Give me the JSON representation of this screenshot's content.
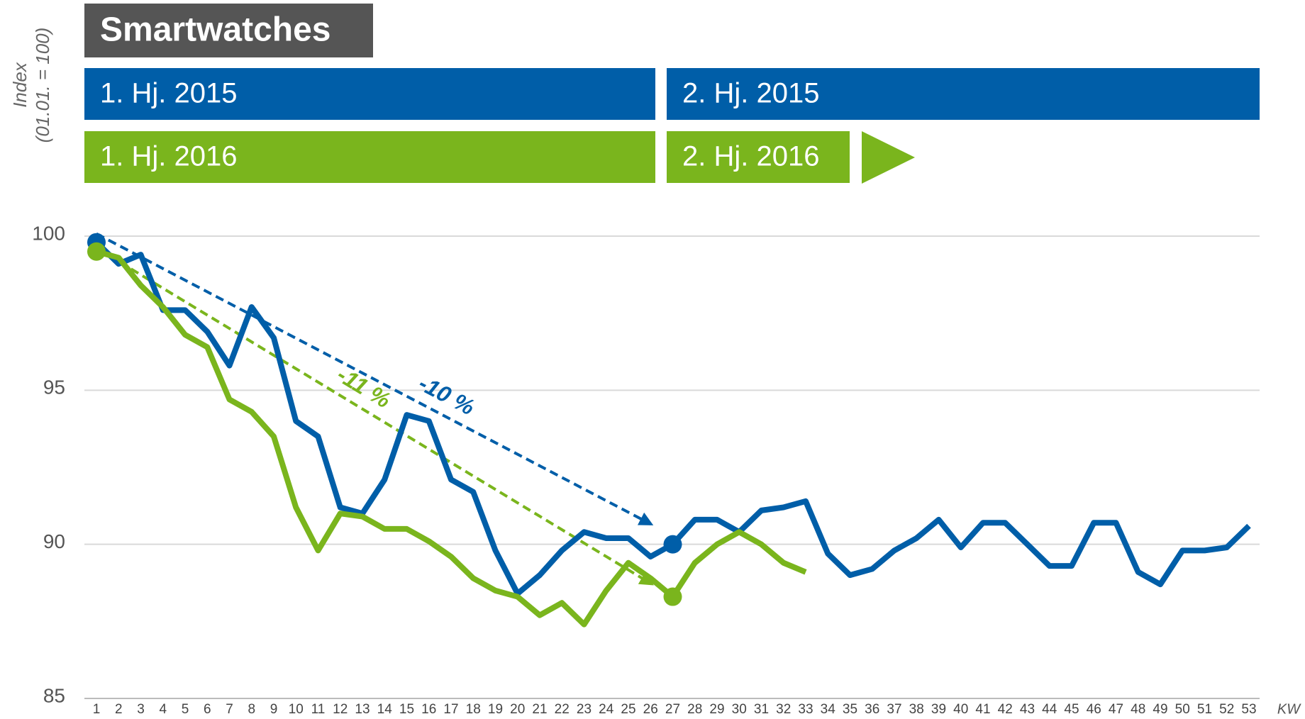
{
  "chart_data": {
    "type": "line",
    "title": "Smartwatches",
    "y_label": [
      "Index",
      "(01.01. = 100)"
    ],
    "x_label": "KW",
    "bands": [
      {
        "label": "1. Hj. 2015",
        "color": "#005ea8"
      },
      {
        "label": "2. Hj. 2015",
        "color": "#005ea8"
      },
      {
        "label": "1. Hj. 2016",
        "color": "#7ab51d"
      },
      {
        "label": "2. Hj. 2016",
        "color": "#7ab51d"
      }
    ],
    "x": [
      1,
      2,
      3,
      4,
      5,
      6,
      7,
      8,
      9,
      10,
      11,
      12,
      13,
      14,
      15,
      16,
      17,
      18,
      19,
      20,
      21,
      22,
      23,
      24,
      25,
      26,
      27,
      28,
      29,
      30,
      31,
      32,
      33,
      34,
      35,
      36,
      37,
      38,
      39,
      40,
      41,
      42,
      43,
      44,
      45,
      46,
      47,
      48,
      49,
      50,
      51,
      52,
      53
    ],
    "xlim": [
      1,
      53
    ],
    "series": [
      {
        "color": "#005ea8",
        "values": [
          99.8,
          99.1,
          99.4,
          97.6,
          97.6,
          96.9,
          95.8,
          97.7,
          96.7,
          94.0,
          93.5,
          91.2,
          91.0,
          92.1,
          94.2,
          94.0,
          92.1,
          91.7,
          89.8,
          88.4,
          89.0,
          89.8,
          90.4,
          90.2,
          90.2,
          89.6,
          90.0,
          90.8,
          90.8,
          90.4,
          91.1,
          91.2,
          91.4,
          89.7,
          89.0,
          89.2,
          89.8,
          90.2,
          90.8,
          89.9,
          90.7,
          90.7,
          90.0,
          89.3,
          89.3,
          90.7,
          90.7,
          89.1,
          88.7,
          89.8,
          89.8,
          89.9,
          90.6
        ]
      },
      {
        "color": "#7ab51d",
        "values": [
          99.5,
          99.3,
          98.4,
          97.7,
          96.8,
          96.4,
          94.7,
          94.3,
          93.5,
          91.2,
          89.8,
          91.0,
          90.9,
          90.5,
          90.5,
          90.1,
          89.6,
          88.9,
          88.5,
          88.3,
          87.7,
          88.1,
          87.4,
          88.5,
          89.4,
          88.9,
          88.3,
          89.4,
          90.0,
          90.4,
          90.0,
          89.4,
          89.1,
          null,
          null,
          null,
          null,
          null,
          null,
          null,
          null,
          null,
          null,
          null,
          null,
          null,
          null,
          null,
          null,
          null,
          null,
          null,
          null
        ]
      }
    ],
    "annotations": [
      {
        "text": "-10 %",
        "series": 0
      },
      {
        "text": "-11 %",
        "series": 1
      }
    ],
    "ylim": [
      85,
      100
    ],
    "yticks": [
      85,
      90,
      95,
      100
    ],
    "grid": true
  }
}
